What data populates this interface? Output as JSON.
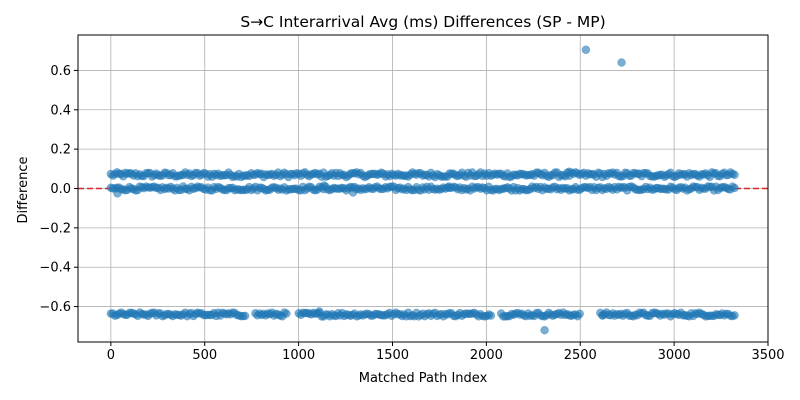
{
  "chart_data": {
    "type": "scatter",
    "title": "S→C Interarrival Avg (ms) Differences (SP - MP)",
    "xlabel": "Matched Path Index",
    "ylabel": "Difference",
    "xlim": [
      -175,
      3500
    ],
    "ylim": [
      -0.78,
      0.78
    ],
    "xticks": [
      0,
      500,
      1000,
      1500,
      2000,
      2500,
      3000,
      3500
    ],
    "yticks": [
      -0.6,
      -0.4,
      -0.2,
      0.0,
      0.2,
      0.4,
      0.6
    ],
    "xtick_labels": [
      "0",
      "500",
      "1000",
      "1500",
      "2000",
      "2500",
      "3000",
      "3500"
    ],
    "ytick_labels": [
      "−0.6",
      "−0.4",
      "−0.2",
      "0.0",
      "0.2",
      "0.4",
      "0.6"
    ],
    "grid": true,
    "reference_line": {
      "y": 0.0,
      "color": "#d62728",
      "style": "dashed"
    },
    "marker_color": "#1f77b4",
    "marker_alpha": 0.6,
    "n_points": 3330,
    "series": [
      {
        "band": "upper",
        "x_range": [
          0,
          3330
        ],
        "y_center": 0.07,
        "y_spread": 0.012,
        "points": [
          [
            2440,
            0.085
          ]
        ]
      },
      {
        "band": "zero",
        "x_range": [
          0,
          3330
        ],
        "y_center": 0.0,
        "y_spread": 0.01,
        "points": [
          [
            35,
            -0.025
          ],
          [
            1135,
            0.015
          ],
          [
            1290,
            -0.02
          ],
          [
            1800,
            0.01
          ]
        ]
      },
      {
        "band": "lower",
        "x_range": [
          0,
          3330
        ],
        "y_center": -0.64,
        "y_spread": 0.01,
        "gaps": [
          [
            720,
            760
          ],
          [
            940,
            990
          ],
          [
            2030,
            2070
          ],
          [
            2500,
            2560
          ],
          [
            2560,
            2600
          ]
        ],
        "points": [
          [
            1110,
            -0.625
          ],
          [
            2310,
            -0.72
          ],
          [
            2620,
            -0.645
          ]
        ]
      },
      {
        "band": "outliers",
        "points": [
          [
            2530,
            0.705
          ],
          [
            2720,
            0.64
          ]
        ]
      }
    ]
  }
}
